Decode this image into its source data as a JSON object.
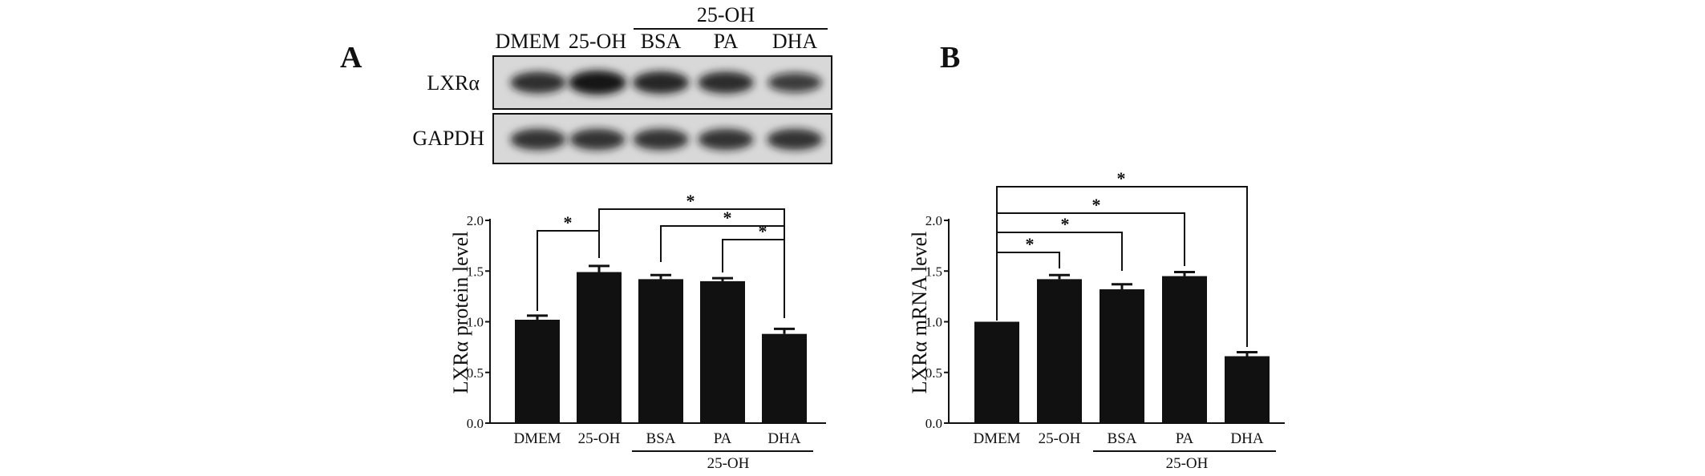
{
  "panels": [
    {
      "letter": "A",
      "blot": {
        "lanes": [
          "DMEM",
          "25-OH",
          "BSA",
          "PA",
          "DHA"
        ],
        "group_label": "25-OH",
        "rows": [
          {
            "label": "LXRα",
            "intensity": [
              0.78,
              1.0,
              0.85,
              0.8,
              0.6
            ]
          },
          {
            "label": "GAPDH",
            "intensity": [
              0.75,
              0.75,
              0.75,
              0.75,
              0.75
            ]
          }
        ]
      },
      "chart_data": {
        "type": "bar",
        "categories": [
          "DMEM",
          "25-OH",
          "BSA",
          "PA",
          "DHA"
        ],
        "values": [
          1.02,
          1.49,
          1.42,
          1.4,
          0.88
        ],
        "errors": [
          0.04,
          0.06,
          0.04,
          0.03,
          0.05
        ],
        "group_label": "25-OH",
        "ylabel": "LXRα  protein  level",
        "ylim": [
          0.0,
          2.0
        ],
        "yticks": [
          "0.0",
          "0.5",
          "1.0",
          "1.5",
          "2.0"
        ],
        "significance": [
          {
            "from": 0,
            "to": 1,
            "label": "*"
          },
          {
            "from": 1,
            "to": 4,
            "label": "*"
          },
          {
            "from": 2,
            "to": 4,
            "label": "*"
          },
          {
            "from": 3,
            "to": 4,
            "label": "*"
          }
        ],
        "bar_color": "#111111"
      }
    },
    {
      "letter": "B",
      "chart_data": {
        "type": "bar",
        "categories": [
          "DMEM",
          "25-OH",
          "BSA",
          "PA",
          "DHA"
        ],
        "values": [
          1.0,
          1.42,
          1.32,
          1.45,
          0.66
        ],
        "errors": [
          0.0,
          0.04,
          0.05,
          0.04,
          0.04
        ],
        "group_label": "25-OH",
        "ylabel": "LXRα  mRNA  level",
        "ylim": [
          0.0,
          2.0
        ],
        "yticks": [
          "0.0",
          "0.5",
          "1.0",
          "1.5",
          "2.0"
        ],
        "significance": [
          {
            "from": 0,
            "to": 1,
            "label": "*"
          },
          {
            "from": 0,
            "to": 2,
            "label": "*"
          },
          {
            "from": 0,
            "to": 3,
            "label": "*"
          },
          {
            "from": 0,
            "to": 4,
            "label": "*"
          }
        ],
        "bar_color": "#111111"
      }
    }
  ]
}
